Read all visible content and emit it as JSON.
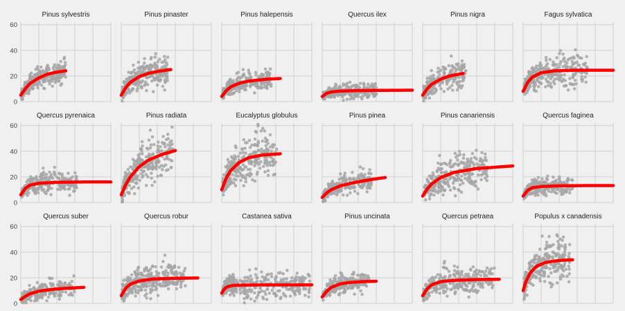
{
  "chart_data": {
    "type": "scatter",
    "layout": "small-multiples 3x6",
    "shared_y": true,
    "ylim": [
      0,
      62
    ],
    "yticks": [
      0,
      20,
      40,
      60
    ],
    "xlim": [
      0,
      100
    ],
    "x_tick_labels_shown": false,
    "grid": true,
    "colors": {
      "background": "#f0f0f0",
      "grid": "#cfcfcf",
      "points": "#a6a6a6",
      "fit": "#ff0000"
    },
    "panels": [
      {
        "title": "Pinus sylvestris",
        "scatter": {
          "x_end": 50,
          "y_center": 17,
          "y_spread": 10,
          "n": 260
        },
        "fit": {
          "x": [
            0,
            5,
            10,
            20,
            30,
            40,
            50
          ],
          "y": [
            5,
            10,
            14,
            18.5,
            21.5,
            23,
            24
          ]
        }
      },
      {
        "title": "Pinus pinaster",
        "scatter": {
          "x_end": 52,
          "y_center": 18,
          "y_spread": 13,
          "n": 260
        },
        "fit": {
          "x": [
            0,
            5,
            10,
            20,
            30,
            40,
            55
          ],
          "y": [
            5,
            11,
            15,
            19.5,
            22,
            23.5,
            25
          ]
        }
      },
      {
        "title": "Pinus halepensis",
        "scatter": {
          "x_end": 55,
          "y_center": 14,
          "y_spread": 9,
          "n": 240
        },
        "fit": {
          "x": [
            0,
            5,
            10,
            20,
            30,
            50,
            65
          ],
          "y": [
            4,
            8.5,
            11.5,
            14.5,
            16,
            17.5,
            18
          ]
        }
      },
      {
        "title": "Quercus ilex",
        "scatter": {
          "x_end": 60,
          "y_center": 7,
          "y_spread": 7,
          "n": 240
        },
        "fit": {
          "x": [
            0,
            5,
            10,
            20,
            40,
            70,
            100
          ],
          "y": [
            4,
            6.5,
            7.5,
            8.2,
            8.6,
            8.8,
            8.9
          ]
        }
      },
      {
        "title": "Pinus nigra",
        "scatter": {
          "x_end": 48,
          "y_center": 16,
          "y_spread": 12,
          "n": 240
        },
        "fit": {
          "x": [
            0,
            5,
            10,
            20,
            30,
            45
          ],
          "y": [
            5,
            10,
            13.5,
            17.5,
            20,
            22
          ]
        }
      },
      {
        "title": "Fagus sylvatica",
        "scatter": {
          "x_end": 72,
          "y_center": 18,
          "y_spread": 14,
          "n": 300
        },
        "fit": {
          "x": [
            0,
            5,
            10,
            20,
            35,
            60,
            100
          ],
          "y": [
            8,
            15,
            19,
            22.5,
            24,
            24.5,
            24.5
          ]
        }
      },
      {
        "title": "Quercus pyrenaica",
        "scatter": {
          "x_end": 62,
          "y_center": 13,
          "y_spread": 9,
          "n": 260
        },
        "fit": {
          "x": [
            0,
            5,
            10,
            20,
            40,
            70,
            100
          ],
          "y": [
            6,
            11,
            13.5,
            15,
            15.8,
            16,
            16
          ]
        }
      },
      {
        "title": "Pinus radiata",
        "scatter": {
          "x_end": 58,
          "y_center": 24,
          "y_spread": 18,
          "n": 280
        },
        "fit": {
          "x": [
            0,
            5,
            10,
            20,
            30,
            45,
            60
          ],
          "y": [
            6,
            14,
            20,
            28,
            33,
            37.5,
            40.5
          ]
        }
      },
      {
        "title": "Eucalyptus globulus",
        "scatter": {
          "x_end": 62,
          "y_center": 25,
          "y_spread": 20,
          "n": 280
        },
        "fit": {
          "x": [
            0,
            5,
            10,
            20,
            30,
            45,
            65
          ],
          "y": [
            10,
            19,
            25,
            31.5,
            35,
            37,
            38
          ]
        }
      },
      {
        "title": "Pinus pinea",
        "scatter": {
          "x_end": 55,
          "y_center": 11,
          "y_spread": 9,
          "n": 240
        },
        "fit": {
          "x": [
            0,
            5,
            10,
            20,
            35,
            55,
            70
          ],
          "y": [
            4,
            7.5,
            10,
            13,
            15.5,
            18,
            19.5
          ]
        }
      },
      {
        "title": "Pinus canariensis",
        "scatter": {
          "x_end": 72,
          "y_center": 20,
          "y_spread": 15,
          "n": 300
        },
        "fit": {
          "x": [
            0,
            5,
            10,
            20,
            35,
            60,
            100
          ],
          "y": [
            5,
            10.5,
            14.5,
            19.5,
            23.5,
            26.5,
            28.5
          ]
        }
      },
      {
        "title": "Quercus faginea",
        "scatter": {
          "x_end": 55,
          "y_center": 10,
          "y_spread": 8,
          "n": 240
        },
        "fit": {
          "x": [
            0,
            5,
            10,
            20,
            40,
            70,
            100
          ],
          "y": [
            5,
            9.5,
            11.5,
            12.5,
            13,
            13.2,
            13.2
          ]
        }
      },
      {
        "title": "Quercus suber",
        "scatter": {
          "x_end": 60,
          "y_center": 9,
          "y_spread": 9,
          "n": 220
        },
        "fit": {
          "x": [
            0,
            5,
            10,
            20,
            35,
            55,
            70
          ],
          "y": [
            3,
            5.5,
            7.5,
            9.5,
            11,
            12,
            12.5
          ]
        }
      },
      {
        "title": "Quercus robur",
        "scatter": {
          "x_end": 72,
          "y_center": 17,
          "y_spread": 13,
          "n": 300
        },
        "fit": {
          "x": [
            0,
            5,
            10,
            20,
            35,
            60,
            85
          ],
          "y": [
            6,
            12,
            15,
            17.5,
            19,
            19.6,
            19.8
          ]
        }
      },
      {
        "title": "Castanea sativa",
        "scatter": {
          "x_end": 100,
          "y_center": 14,
          "y_spread": 12,
          "n": 320
        },
        "fit": {
          "x": [
            0,
            3,
            6,
            12,
            25,
            50,
            100
          ],
          "y": [
            8,
            11.5,
            13,
            14,
            14.3,
            14.4,
            14.5
          ]
        }
      },
      {
        "title": "Pinus uncinata",
        "scatter": {
          "x_end": 52,
          "y_center": 12,
          "y_spread": 9,
          "n": 220
        },
        "fit": {
          "x": [
            0,
            5,
            10,
            20,
            30,
            45,
            60
          ],
          "y": [
            5,
            9.5,
            12.5,
            15.2,
            16.3,
            17,
            17.3
          ]
        }
      },
      {
        "title": "Quercus petraea",
        "scatter": {
          "x_end": 80,
          "y_center": 16,
          "y_spread": 12,
          "n": 280
        },
        "fit": {
          "x": [
            0,
            5,
            10,
            20,
            35,
            60,
            85
          ],
          "y": [
            6,
            11.5,
            14.5,
            17,
            18,
            18.6,
            18.8
          ]
        }
      },
      {
        "title": "Populus x canadensis",
        "scatter": {
          "x_end": 52,
          "y_center": 25,
          "y_spread": 19,
          "n": 260
        },
        "fit": {
          "x": [
            0,
            3,
            8,
            15,
            25,
            40,
            55
          ],
          "y": [
            10,
            17,
            24,
            29,
            32,
            33.5,
            34
          ]
        }
      }
    ]
  }
}
